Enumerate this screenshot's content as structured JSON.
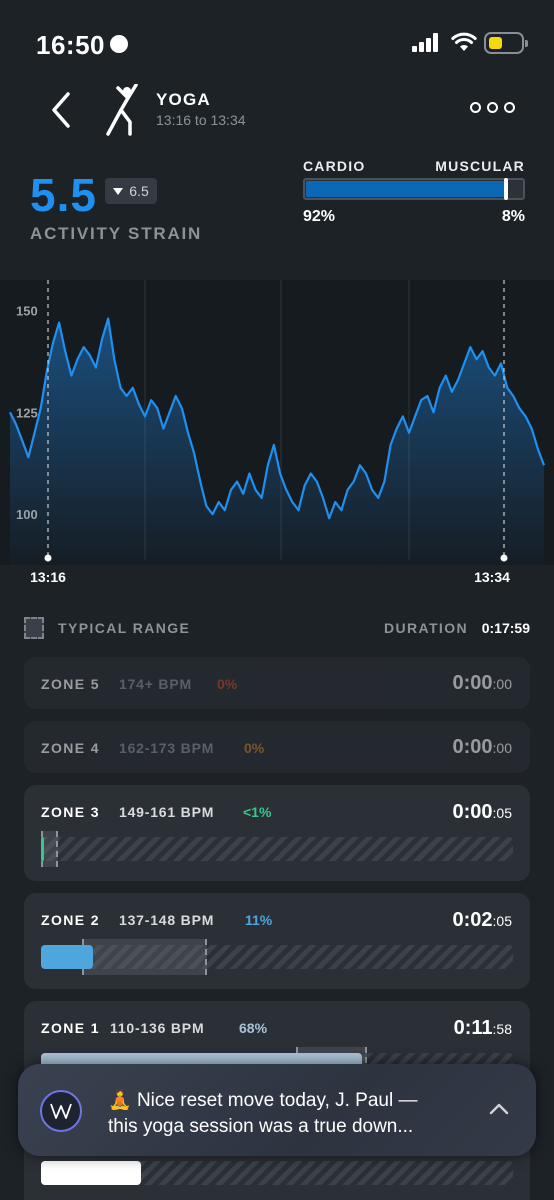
{
  "status_bar": {
    "time": "16:50"
  },
  "header": {
    "title": "YOGA",
    "subtitle": "13:16 to 13:34"
  },
  "strain": {
    "value": "5.5",
    "typical": "6.5",
    "label": "ACTIVITY STRAIN"
  },
  "cardio_muscular": {
    "cardio_label": "CARDIO",
    "muscular_label": "MUSCULAR",
    "cardio_pct": "92%",
    "muscular_pct": "8%",
    "cardio_fraction": 0.92
  },
  "chart_data": {
    "type": "area",
    "y_ticks": [
      "150",
      "125",
      "100"
    ],
    "ylim": [
      90,
      155
    ],
    "x_start_label": "13:16",
    "x_end_label": "13:34",
    "color": "#1f8ff0",
    "heart_rate": [
      125,
      122,
      118,
      114,
      120,
      126,
      135,
      142,
      147,
      140,
      134,
      138,
      141,
      139,
      136,
      143,
      148,
      138,
      131,
      129,
      131,
      127,
      124,
      128,
      126,
      121,
      125,
      129,
      126,
      120,
      115,
      108,
      102,
      100,
      103,
      101,
      106,
      108,
      105,
      110,
      106,
      104,
      112,
      117,
      110,
      106,
      103,
      101,
      107,
      110,
      108,
      104,
      99,
      103,
      101,
      106,
      108,
      112,
      110,
      106,
      104,
      108,
      117,
      121,
      124,
      120,
      124,
      128,
      129,
      125,
      131,
      134,
      130,
      133,
      137,
      141,
      138,
      140,
      136,
      134,
      137,
      131,
      129,
      126,
      124,
      121,
      116,
      112
    ]
  },
  "legend": {
    "typical_range": "TYPICAL RANGE",
    "duration_label": "DURATION",
    "duration": "0:17:59"
  },
  "zones": [
    {
      "name": "ZONE 5",
      "bpm": "174+ BPM",
      "pct": "0%",
      "time_big": "0:00",
      "time_small": ":00",
      "pct_color": "#c4492c",
      "fill_fraction": 0
    },
    {
      "name": "ZONE 4",
      "bpm": "162-173 BPM",
      "pct": "0%",
      "time_big": "0:00",
      "time_small": ":00",
      "pct_color": "#c97f2c",
      "fill_fraction": 0
    },
    {
      "name": "ZONE 3",
      "bpm": "149-161 BPM",
      "pct": "<1%",
      "time_big": "0:00",
      "time_small": ":05",
      "pct_color": "#3bc58c",
      "fill_fraction": 0.005
    },
    {
      "name": "ZONE 2",
      "bpm": "137-148 BPM",
      "pct": "11%",
      "time_big": "0:02",
      "time_small": ":05",
      "pct_color": "#4ea6dd",
      "fill_fraction": 0.11
    },
    {
      "name": "ZONE 1",
      "bpm": "110-136 BPM",
      "pct": "68%",
      "time_big": "0:11",
      "time_small": ":58",
      "pct_color": "#a9c2d8",
      "fill_fraction": 0.68
    }
  ],
  "toast": {
    "emoji": "🧘",
    "line1": "Nice reset move today, J. Paul —",
    "line2": "this yoga session was a true down..."
  }
}
